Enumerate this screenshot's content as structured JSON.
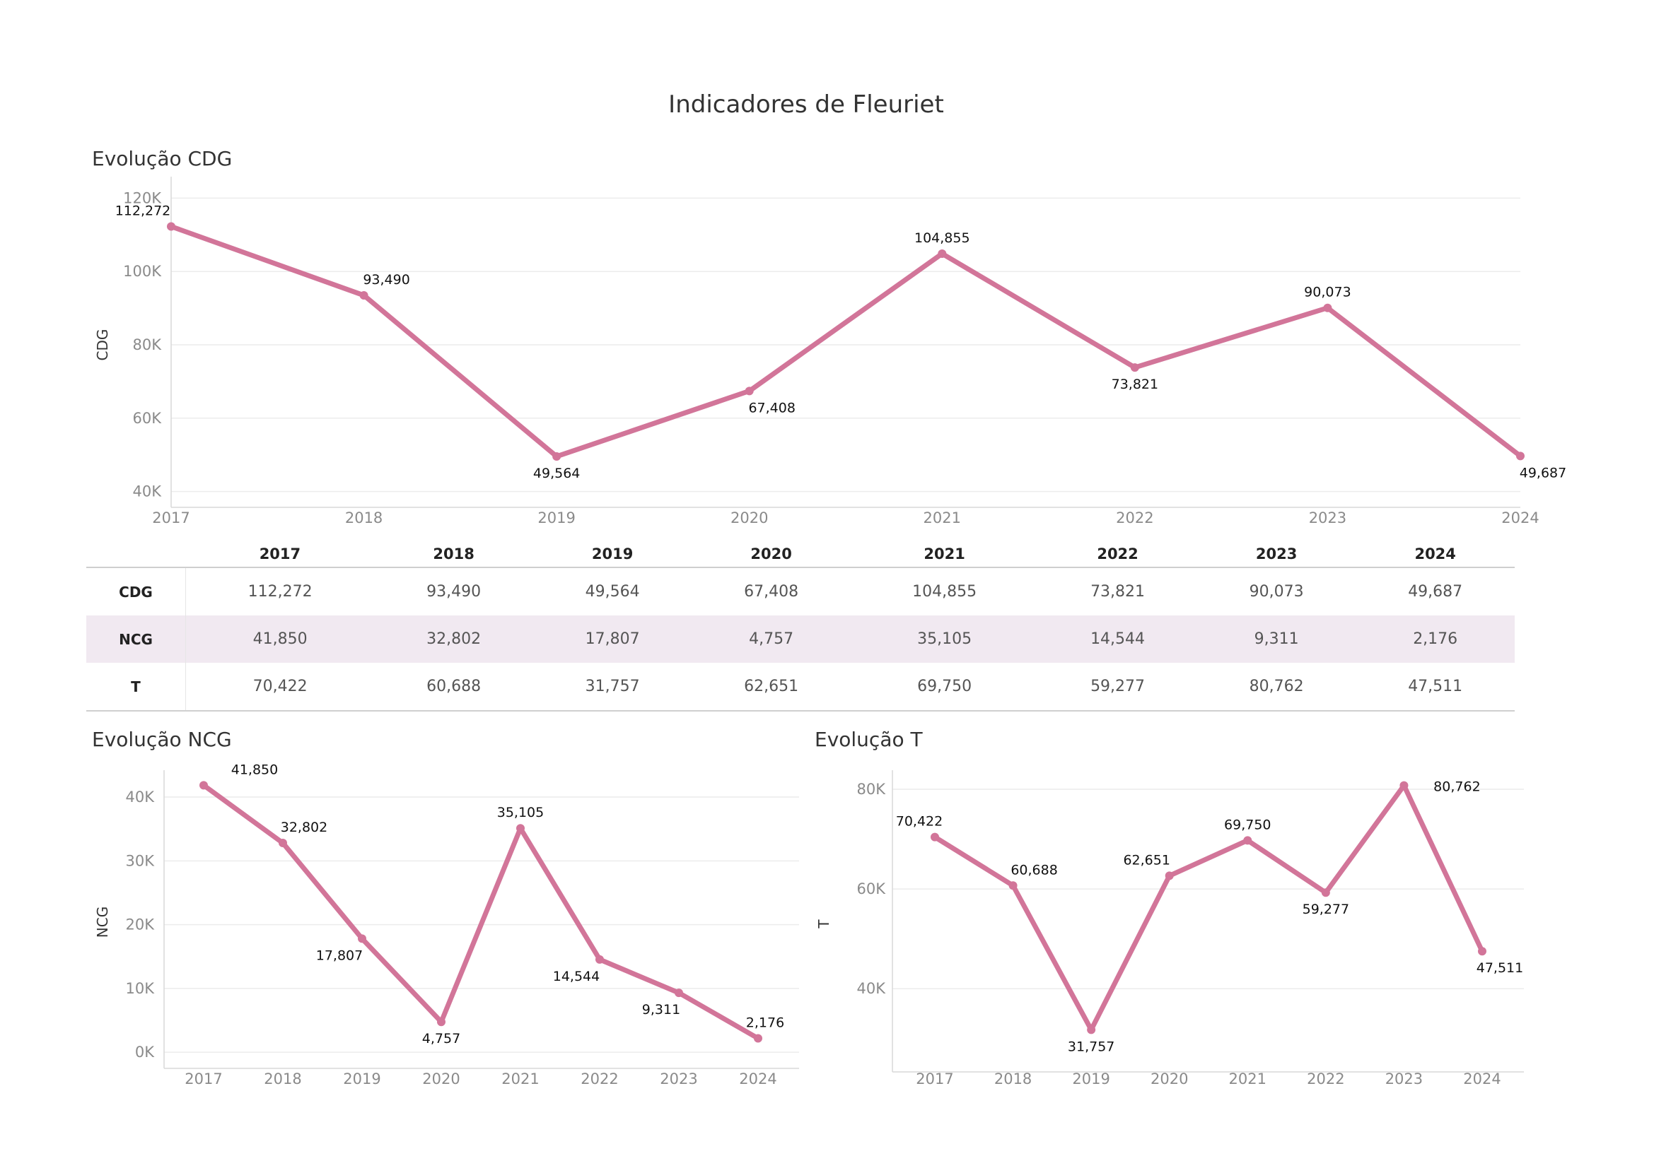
{
  "page": {
    "title": "Indicadores de Fleuriet",
    "line_color": "#d27599",
    "table_alt_row_color": "#f1e9f1"
  },
  "table": {
    "years": [
      "2017",
      "2018",
      "2019",
      "2020",
      "2021",
      "2022",
      "2023",
      "2024"
    ],
    "rows": [
      {
        "label": "CDG",
        "values": [
          "112,272",
          "93,490",
          "49,564",
          "67,408",
          "104,855",
          "73,821",
          "90,073",
          "49,687"
        ]
      },
      {
        "label": "NCG",
        "values": [
          "41,850",
          "32,802",
          "17,807",
          "4,757",
          "35,105",
          "14,544",
          "9,311",
          "2,176"
        ]
      },
      {
        "label": "T",
        "values": [
          "70,422",
          "60,688",
          "31,757",
          "62,651",
          "69,750",
          "59,277",
          "80,762",
          "47,511"
        ]
      }
    ]
  },
  "chart_data": [
    {
      "type": "line",
      "title": "Evolução CDG",
      "xlabel": "",
      "ylabel": "CDG",
      "categories": [
        "2017",
        "2018",
        "2019",
        "2020",
        "2021",
        "2022",
        "2023",
        "2024"
      ],
      "values": [
        112272,
        93490,
        49564,
        67408,
        104855,
        73821,
        90073,
        49687
      ],
      "data_labels": [
        "112,272",
        "93,490",
        "49,564",
        "67,408",
        "104,855",
        "73,821",
        "90,073",
        "49,687"
      ],
      "yticks": [
        40000,
        60000,
        80000,
        100000,
        120000
      ],
      "ytick_labels": [
        "40K",
        "60K",
        "80K",
        "100K",
        "120K"
      ],
      "ylim": [
        38000,
        122000
      ],
      "grid": true
    },
    {
      "type": "line",
      "title": "Evolução NCG",
      "xlabel": "",
      "ylabel": "NCG",
      "categories": [
        "2017",
        "2018",
        "2019",
        "2020",
        "2021",
        "2022",
        "2023",
        "2024"
      ],
      "values": [
        41850,
        32802,
        17807,
        4757,
        35105,
        14544,
        9311,
        2176
      ],
      "data_labels": [
        "41,850",
        "32,802",
        "17,807",
        "4,757",
        "35,105",
        "14,544",
        "9,311",
        "2,176"
      ],
      "yticks": [
        0,
        10000,
        20000,
        30000,
        40000
      ],
      "ytick_labels": [
        "0K",
        "10K",
        "20K",
        "30K",
        "40K"
      ],
      "ylim": [
        -1200,
        42000
      ],
      "grid": true
    },
    {
      "type": "line",
      "title": "Evolução T",
      "xlabel": "",
      "ylabel": "T",
      "categories": [
        "2017",
        "2018",
        "2019",
        "2020",
        "2021",
        "2022",
        "2023",
        "2024"
      ],
      "values": [
        70422,
        60688,
        31757,
        62651,
        69750,
        59277,
        80762,
        47511
      ],
      "data_labels": [
        "70,422",
        "60,688",
        "31,757",
        "62,651",
        "69,750",
        "59,277",
        "80,762",
        "47,511"
      ],
      "yticks": [
        40000,
        60000,
        80000
      ],
      "ytick_labels": [
        "40K",
        "60K",
        "80K"
      ],
      "ylim": [
        25000,
        81000
      ],
      "grid": true
    }
  ]
}
